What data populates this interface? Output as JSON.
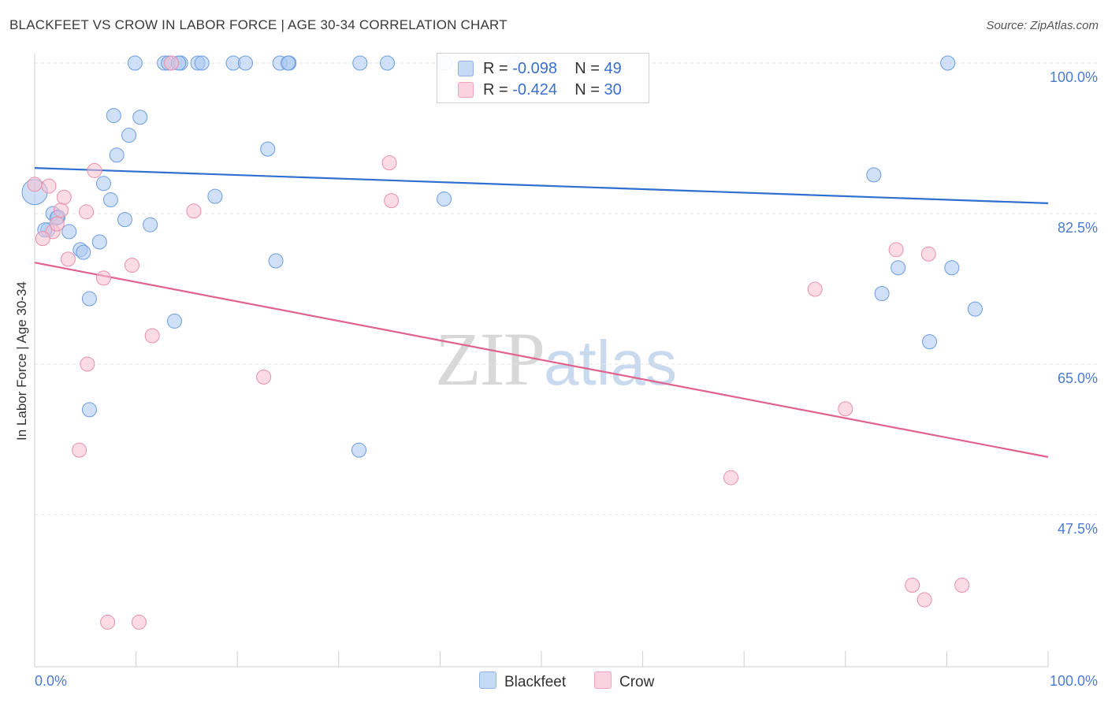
{
  "header": {
    "title": "BLACKFEET VS CROW IN LABOR FORCE | AGE 30-34 CORRELATION CHART",
    "source": "Source: ZipAtlas.com"
  },
  "watermark": {
    "zip": "ZIP",
    "atlas": "atlas"
  },
  "legend": {
    "blackfeet": {
      "r_label": "R = ",
      "r_value": "-0.098",
      "n_label": "N = ",
      "n_value": "49",
      "color": "#aac8f0"
    },
    "crow": {
      "r_label": "R = ",
      "r_value": "-0.424",
      "n_label": "N = ",
      "n_value": "30",
      "color": "#f7bfd0"
    }
  },
  "bottom_legend": {
    "blackfeet": "Blackfeet",
    "crow": "Crow"
  },
  "chart_data": {
    "type": "scatter",
    "title": "BLACKFEET VS CROW IN LABOR FORCE | AGE 30-34 CORRELATION CHART",
    "xlabel": "",
    "ylabel": "In Labor Force | Age 30-34",
    "xlim": [
      0,
      100
    ],
    "ylim": [
      31.5,
      103
    ],
    "y_ticks": [
      47.5,
      65.0,
      82.5,
      100.0
    ],
    "y_tick_labels": [
      "47.5%",
      "65.0%",
      "82.5%",
      "100.0%"
    ],
    "x_tick_labels": [
      "0.0%",
      "100.0%"
    ],
    "grid": true,
    "series": [
      {
        "name": "Blackfeet",
        "color": "#aac8f0",
        "stroke": "#6b9ce0",
        "trend_color": "#2f6fcf",
        "trend": [
          [
            0,
            87.8
          ],
          [
            100,
            83.7
          ]
        ],
        "points": [
          [
            0.0,
            85.0
          ],
          [
            1.8,
            82.5
          ],
          [
            2.3,
            82.1
          ],
          [
            1.3,
            80.6
          ],
          [
            3.4,
            80.4
          ],
          [
            4.5,
            78.3
          ],
          [
            4.8,
            78.0
          ],
          [
            6.4,
            79.2
          ],
          [
            7.5,
            84.1
          ],
          [
            6.8,
            86.0
          ],
          [
            8.1,
            89.3
          ],
          [
            9.3,
            91.6
          ],
          [
            8.9,
            81.8
          ],
          [
            11.4,
            81.2
          ],
          [
            7.8,
            93.9
          ],
          [
            10.4,
            93.7
          ],
          [
            5.4,
            72.6
          ],
          [
            13.8,
            70.0
          ],
          [
            5.4,
            59.7
          ],
          [
            9.9,
            100.0
          ],
          [
            12.8,
            100.0
          ],
          [
            13.2,
            100.0
          ],
          [
            14.4,
            100.0
          ],
          [
            16.1,
            100.0
          ],
          [
            16.5,
            100.0
          ],
          [
            19.6,
            100.0
          ],
          [
            20.8,
            100.0
          ],
          [
            24.2,
            100.0
          ],
          [
            25.1,
            100.0
          ],
          [
            32.1,
            100.0
          ],
          [
            34.8,
            100.0
          ],
          [
            40.5,
            100.0
          ],
          [
            47.4,
            100.0
          ],
          [
            90.1,
            100.0
          ],
          [
            17.8,
            84.5
          ],
          [
            23.0,
            90.0
          ],
          [
            23.8,
            77.0
          ],
          [
            32.0,
            55.0
          ],
          [
            40.4,
            84.2
          ],
          [
            82.8,
            87.0
          ],
          [
            85.2,
            76.2
          ],
          [
            88.3,
            67.6
          ],
          [
            90.5,
            76.2
          ],
          [
            92.8,
            71.4
          ],
          [
            83.6,
            73.2
          ],
          [
            1.0,
            80.6
          ],
          [
            2.2,
            82.0
          ],
          [
            14.2,
            100.0
          ],
          [
            25.0,
            100.0
          ]
        ]
      },
      {
        "name": "Crow",
        "color": "#f7bfd0",
        "stroke": "#ea8fab",
        "trend_color": "#e0628e",
        "trend": [
          [
            0,
            76.8
          ],
          [
            100,
            54.2
          ]
        ],
        "points": [
          [
            0.0,
            85.9
          ],
          [
            1.4,
            85.7
          ],
          [
            2.6,
            82.9
          ],
          [
            2.9,
            84.4
          ],
          [
            5.1,
            82.7
          ],
          [
            1.8,
            80.4
          ],
          [
            0.8,
            79.6
          ],
          [
            2.2,
            81.3
          ],
          [
            3.3,
            77.2
          ],
          [
            5.9,
            87.5
          ],
          [
            6.8,
            75.0
          ],
          [
            9.6,
            76.5
          ],
          [
            15.7,
            82.8
          ],
          [
            11.6,
            68.3
          ],
          [
            5.2,
            65.0
          ],
          [
            4.4,
            55.0
          ],
          [
            7.2,
            35.0
          ],
          [
            10.3,
            35.0
          ],
          [
            13.5,
            100.0
          ],
          [
            35.0,
            88.4
          ],
          [
            35.2,
            84.0
          ],
          [
            22.6,
            63.5
          ],
          [
            77.0,
            73.7
          ],
          [
            80.0,
            59.8
          ],
          [
            68.7,
            51.8
          ],
          [
            85.0,
            78.3
          ],
          [
            88.2,
            77.8
          ],
          [
            86.6,
            39.3
          ],
          [
            87.8,
            37.6
          ],
          [
            91.5,
            39.3
          ]
        ]
      }
    ]
  }
}
